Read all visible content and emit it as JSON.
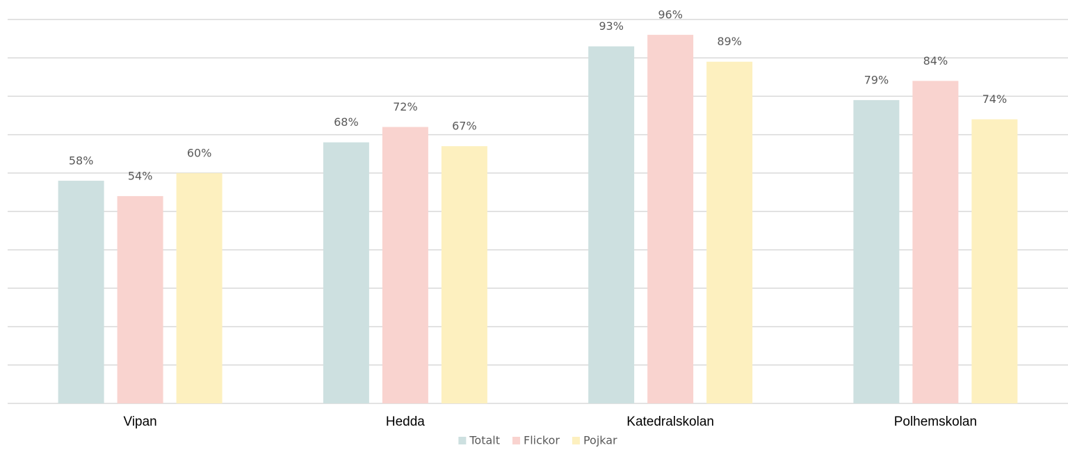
{
  "chart_data": {
    "type": "bar",
    "categories": [
      "Vipan",
      "Hedda",
      "Katedralskolan",
      "Polhemskolan"
    ],
    "series": [
      {
        "name": "Totalt",
        "color": "#cde0e0",
        "values": [
          58,
          68,
          93,
          79
        ],
        "value_labels": [
          "58%",
          "68%",
          "93%",
          "79%"
        ]
      },
      {
        "name": "Flickor",
        "color": "#f9d3cf",
        "values": [
          54,
          72,
          96,
          84
        ],
        "value_labels": [
          "54%",
          "72%",
          "96%",
          "84%"
        ]
      },
      {
        "name": "Pojkar",
        "color": "#fdf0bf",
        "values": [
          60,
          67,
          89,
          74
        ],
        "value_labels": [
          "60%",
          "67%",
          "89%",
          "74%"
        ]
      }
    ],
    "ylim": [
      0,
      100
    ],
    "yticks": [
      0,
      10,
      20,
      30,
      40,
      50,
      60,
      70,
      80,
      90,
      100
    ],
    "grid": true,
    "legend": "bottom"
  }
}
